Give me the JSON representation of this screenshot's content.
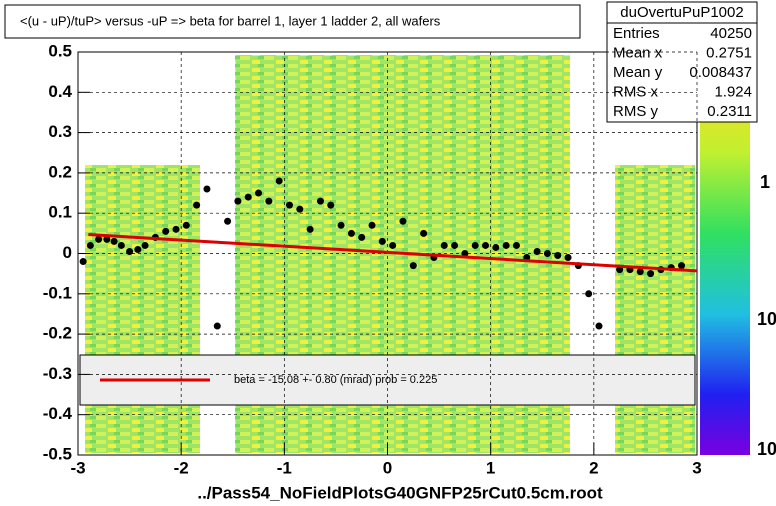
{
  "chart_data": {
    "type": "scatter",
    "title": "<(u - uP)/tuP> versus  -uP => beta for barrel 1, layer 1 ladder 2, all wafers",
    "x_label": "../Pass54_NoFieldPlotsG40GNFP25rCut0.5cm.root",
    "xlim": [
      -3,
      3
    ],
    "xticks": [
      -3,
      -2,
      -1,
      0,
      1,
      2,
      3
    ],
    "ylim": [
      -0.5,
      0.5
    ],
    "yticks": [
      -0.5,
      -0.4,
      -0.3,
      -0.2,
      -0.1,
      0,
      0.1,
      0.2,
      0.3,
      0.4,
      0.5
    ],
    "grid": true,
    "stats": {
      "name": "duOvertuPuP1002",
      "rows": [
        [
          "Entries",
          "40250"
        ],
        [
          "Mean x",
          "0.2751"
        ],
        [
          "Mean y",
          "0.008437"
        ],
        [
          "RMS x",
          "1.924"
        ],
        [
          "RMS y",
          "0.2311"
        ]
      ]
    },
    "colorbar_labels": [
      "1",
      "10",
      "10"
    ],
    "legend_text": "beta =  -15.08 +-  0.80 (mrad) prob = 0.225",
    "series": [
      {
        "color": "#000000",
        "x": [
          -2.95,
          -2.88,
          -2.8,
          -2.72,
          -2.65,
          -2.58,
          -2.5,
          -2.42,
          -2.35,
          -2.25,
          -2.15,
          -2.05,
          -1.95,
          -1.85,
          -1.75,
          -1.65,
          -1.55,
          -1.45,
          -1.35,
          -1.25,
          -1.15,
          -1.05,
          -0.95,
          -0.85,
          -0.75,
          -0.65,
          -0.55,
          -0.45,
          -0.35,
          -0.25,
          -0.15,
          -0.05,
          0.05,
          0.15,
          0.25,
          0.35,
          0.45,
          0.55,
          0.65,
          0.75,
          0.85,
          0.95,
          1.05,
          1.15,
          1.25,
          1.35,
          1.45,
          1.55,
          1.65,
          1.75,
          1.85,
          1.95,
          2.05,
          2.25,
          2.35,
          2.45,
          2.55,
          2.65,
          2.75,
          2.85
        ],
        "values": [
          -0.02,
          0.02,
          0.035,
          0.035,
          0.03,
          0.02,
          0.005,
          0.01,
          0.02,
          0.04,
          0.055,
          0.06,
          0.07,
          0.12,
          0.16,
          -0.18,
          0.08,
          0.13,
          0.14,
          0.15,
          0.13,
          0.18,
          0.12,
          0.11,
          0.06,
          0.13,
          0.12,
          0.07,
          0.05,
          0.04,
          0.07,
          0.03,
          0.02,
          0.08,
          -0.03,
          0.05,
          -0.01,
          0.02,
          0.02,
          0.0,
          0.02,
          0.02,
          0.015,
          0.02,
          0.02,
          -0.01,
          0.005,
          0.0,
          -0.005,
          -0.01,
          -0.03,
          -0.1,
          -0.18,
          -0.04,
          -0.04,
          -0.045,
          -0.05,
          -0.04,
          -0.035,
          -0.03
        ]
      },
      {
        "color": "#dd0000",
        "x": [
          -2.9,
          3
        ],
        "values": [
          0.047,
          -0.043
        ]
      }
    ]
  }
}
